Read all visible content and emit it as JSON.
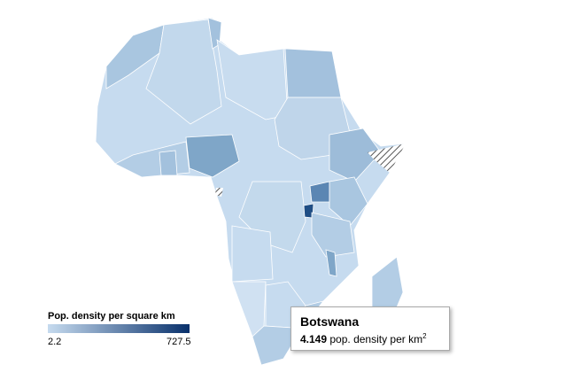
{
  "legend": {
    "title": "Pop. density per square km",
    "min": "2.2",
    "max": "727.5"
  },
  "tooltip": {
    "country": "Botswana",
    "value": "4.149",
    "unit": "pop. density per km",
    "unit_superscript": "2"
  }
}
